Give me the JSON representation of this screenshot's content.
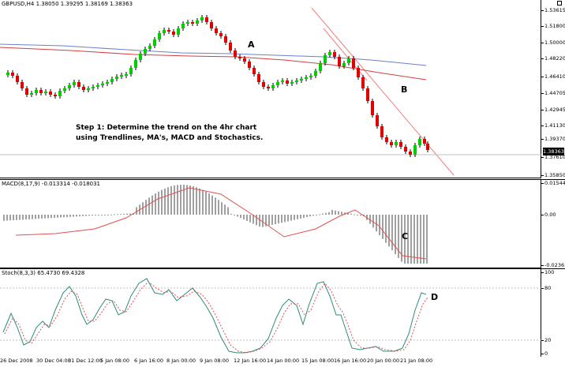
{
  "main": {
    "header": "GBPUSD,H4  1.38050 1.39295 1.38169 1.38363",
    "current_price": "1.38363",
    "y_labels": [
      "1.53615",
      "1.51800",
      "1.50000",
      "1.48220",
      "1.46410",
      "1.44705",
      "1.42945",
      "1.41130",
      "1.39370",
      "1.37610",
      "1.35850"
    ],
    "note": "Step 1: Determine the trend on the 4hr chart\nusing Trendlines, MA's, MACD and Stochastics.",
    "annotations": {
      "a": "A",
      "b": "B"
    },
    "colors": {
      "bull": "#00cc00",
      "bear": "#e00000",
      "trend": "#f08080",
      "ma_blue": "#6b7fd0",
      "ma_red": "#d04040"
    }
  },
  "macd": {
    "header": "MACD(8,17,9) -0.013314 -0.018031",
    "y_labels": [
      "0.01544",
      "0.00",
      "-0.02361"
    ],
    "annotation": "C",
    "colors": {
      "hist": "#a0a0a0",
      "signal": "#e05050"
    }
  },
  "stoch": {
    "header": "Stoch(8,3,3) 65.4730 69.4328",
    "y_labels": [
      "100",
      "80",
      "20",
      "0"
    ],
    "annotation": "D",
    "colors": {
      "main": "#2e8b7a",
      "signal": "#e05050"
    }
  },
  "x_axis": [
    "26 Dec 2008",
    "30 Dec 04:00",
    "31 Dec 12:00",
    "5 Jan 08:00",
    "6 Jan 16:00",
    "8 Jan 00:00",
    "9 Jan 08:00",
    "12 Jan 16:00",
    "14 Jan 00:00",
    "15 Jan 08:00",
    "16 Jan 16:00",
    "20 Jan 00:00",
    "21 Jan 08:00"
  ],
  "chart_data": {
    "type": "candlestick",
    "symbol": "GBPUSD",
    "timeframe": "H4",
    "ohlc": [
      1.3805,
      1.39295,
      1.38169,
      1.38363
    ],
    "indicators": [
      "MACD(8,17,9)",
      "Stoch(8,3,3)"
    ],
    "macd_values": [
      -0.013314,
      -0.018031
    ],
    "stoch_values": [
      65.473,
      69.4328
    ],
    "price_ylim": [
      1.3585,
      1.53615
    ]
  }
}
